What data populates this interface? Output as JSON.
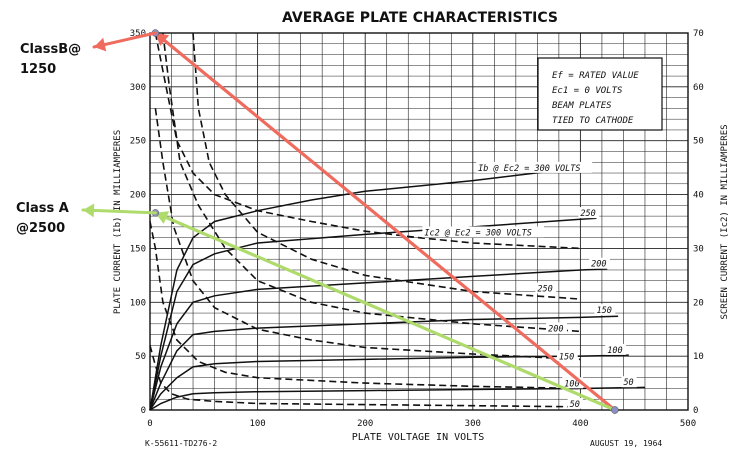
{
  "chart_data": {
    "type": "line",
    "title": "AVERAGE PLATE CHARACTERISTICS",
    "xlabel": "PLATE VOLTAGE IN VOLTS",
    "ylabel_left": "PLATE CURRENT (Ib) IN MILLIAMPERES",
    "ylabel_right": "SCREEN CURRENT (Ic2) IN MILLIAMPERES",
    "xlim": [
      0,
      500
    ],
    "ylim_left": [
      0,
      350
    ],
    "ylim_right": [
      0,
      70
    ],
    "x_ticks": [
      "0",
      "100",
      "200",
      "300",
      "400",
      "500"
    ],
    "y_ticks_left": [
      "0",
      "50",
      "100",
      "150",
      "200",
      "250",
      "300",
      "350"
    ],
    "y_ticks_right": [
      "0",
      "10",
      "20",
      "30",
      "40",
      "50",
      "60",
      "70"
    ],
    "grid": true,
    "conditions": [
      "Ef = RATED VALUE",
      "Ec1 = 0 VOLTS",
      "BEAM PLATES",
      "TIED TO CATHODE"
    ],
    "footer_left": "K-55611-TD276-2",
    "footer_right": "AUGUST 19, 1964",
    "curve_labels": [
      {
        "text": "Ib @ Ec2 = 300 VOLTS",
        "x": 305,
        "y": 222
      },
      {
        "text": "Ic2 @ Ec2 = 300 VOLTS",
        "x": 255,
        "y": 162
      },
      {
        "text": "250",
        "x": 400,
        "y": 180
      },
      {
        "text": "200",
        "x": 410,
        "y": 133
      },
      {
        "text": "150",
        "x": 415,
        "y": 90
      },
      {
        "text": "100",
        "x": 425,
        "y": 53
      },
      {
        "text": "50",
        "x": 440,
        "y": 23
      },
      {
        "text": "250",
        "x": 360,
        "y": 110
      },
      {
        "text": "200",
        "x": 370,
        "y": 73
      },
      {
        "text": "150",
        "x": 380,
        "y": 47
      },
      {
        "text": "100",
        "x": 385,
        "y": 22
      },
      {
        "text": "50",
        "x": 390,
        "y": 3
      }
    ],
    "plate_series": [
      {
        "name": "Ib @ Ec2 = 300 VOLTS",
        "points": [
          [
            0,
            0
          ],
          [
            10,
            60
          ],
          [
            25,
            130
          ],
          [
            40,
            160
          ],
          [
            60,
            175
          ],
          [
            100,
            185
          ],
          [
            150,
            195
          ],
          [
            200,
            203
          ],
          [
            300,
            213
          ],
          [
            400,
            225
          ]
        ]
      },
      {
        "name": "250",
        "points": [
          [
            0,
            0
          ],
          [
            10,
            50
          ],
          [
            25,
            110
          ],
          [
            40,
            135
          ],
          [
            60,
            145
          ],
          [
            100,
            155
          ],
          [
            200,
            163
          ],
          [
            300,
            170
          ],
          [
            400,
            177
          ],
          [
            415,
            178
          ]
        ]
      },
      {
        "name": "200",
        "points": [
          [
            0,
            0
          ],
          [
            10,
            40
          ],
          [
            25,
            80
          ],
          [
            40,
            100
          ],
          [
            60,
            106
          ],
          [
            100,
            112
          ],
          [
            200,
            118
          ],
          [
            300,
            124
          ],
          [
            400,
            130
          ],
          [
            425,
            131
          ]
        ]
      },
      {
        "name": "150",
        "points": [
          [
            0,
            0
          ],
          [
            10,
            25
          ],
          [
            25,
            55
          ],
          [
            40,
            70
          ],
          [
            60,
            73
          ],
          [
            100,
            76
          ],
          [
            200,
            80
          ],
          [
            300,
            84
          ],
          [
            400,
            86
          ],
          [
            435,
            87
          ]
        ]
      },
      {
        "name": "100",
        "points": [
          [
            0,
            0
          ],
          [
            10,
            15
          ],
          [
            25,
            30
          ],
          [
            40,
            40
          ],
          [
            60,
            43
          ],
          [
            100,
            45
          ],
          [
            200,
            47
          ],
          [
            300,
            49
          ],
          [
            400,
            50
          ],
          [
            445,
            51
          ]
        ]
      },
      {
        "name": "50",
        "points": [
          [
            0,
            0
          ],
          [
            10,
            6
          ],
          [
            25,
            12
          ],
          [
            40,
            15
          ],
          [
            60,
            16
          ],
          [
            100,
            17
          ],
          [
            200,
            18
          ],
          [
            300,
            19
          ],
          [
            400,
            20
          ],
          [
            460,
            21
          ]
        ]
      }
    ],
    "screen_series": [
      {
        "name": "Ic2 @ Ec2 = 300 VOLTS",
        "points": [
          [
            5,
            350
          ],
          [
            15,
            300
          ],
          [
            25,
            250
          ],
          [
            40,
            220
          ],
          [
            60,
            200
          ],
          [
            100,
            185
          ],
          [
            150,
            175
          ],
          [
            200,
            166
          ],
          [
            250,
            160
          ],
          [
            300,
            155
          ],
          [
            400,
            150
          ]
        ]
      },
      {
        "name": "250",
        "points": [
          [
            40,
            350
          ],
          [
            45,
            280
          ],
          [
            55,
            230
          ],
          [
            70,
            200
          ],
          [
            100,
            165
          ],
          [
            150,
            140
          ],
          [
            200,
            125
          ],
          [
            300,
            110
          ],
          [
            400,
            103
          ]
        ]
      },
      {
        "name": "200",
        "points": [
          [
            12,
            350
          ],
          [
            18,
            300
          ],
          [
            28,
            230
          ],
          [
            45,
            190
          ],
          [
            70,
            150
          ],
          [
            100,
            120
          ],
          [
            150,
            100
          ],
          [
            200,
            90
          ],
          [
            300,
            80
          ],
          [
            400,
            73
          ]
        ]
      },
      {
        "name": "150",
        "points": [
          [
            5,
            280
          ],
          [
            12,
            230
          ],
          [
            22,
            170
          ],
          [
            40,
            120
          ],
          [
            60,
            95
          ],
          [
            100,
            75
          ],
          [
            150,
            65
          ],
          [
            200,
            58
          ],
          [
            300,
            52
          ],
          [
            400,
            47
          ]
        ]
      },
      {
        "name": "100",
        "points": [
          [
            0,
            175
          ],
          [
            5,
            150
          ],
          [
            12,
            100
          ],
          [
            25,
            65
          ],
          [
            45,
            45
          ],
          [
            70,
            35
          ],
          [
            100,
            30
          ],
          [
            200,
            25
          ],
          [
            300,
            22
          ],
          [
            400,
            20
          ]
        ]
      },
      {
        "name": "50",
        "points": [
          [
            0,
            60
          ],
          [
            4,
            45
          ],
          [
            10,
            25
          ],
          [
            20,
            15
          ],
          [
            35,
            10
          ],
          [
            60,
            8
          ],
          [
            100,
            6
          ],
          [
            200,
            5
          ],
          [
            300,
            4
          ],
          [
            400,
            3
          ]
        ]
      }
    ],
    "annotations": [
      {
        "text": "ClassB@\n1250",
        "line_color": "#ef6b5e",
        "from": [
          432,
          0
        ],
        "to": [
          5,
          350
        ]
      },
      {
        "text": "Class A\n@2500",
        "line_color": "#aedb6b",
        "from": [
          432,
          0
        ],
        "to": [
          5,
          183
        ]
      }
    ],
    "annotation_labels": {
      "class_b_line1": "ClassB@",
      "class_b_line2": "1250",
      "class_a_line1": "Class A",
      "class_a_line2": "@2500"
    }
  }
}
